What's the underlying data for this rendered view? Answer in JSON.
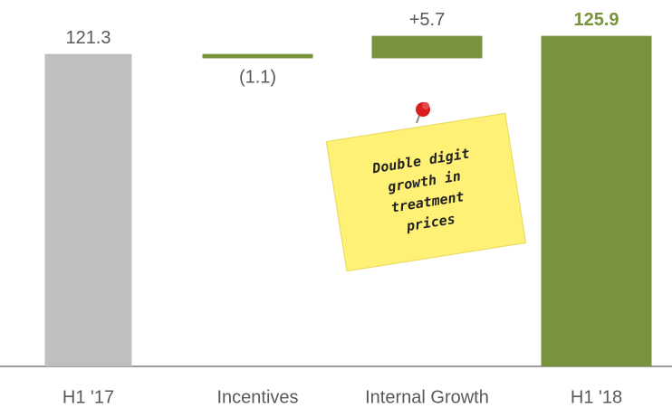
{
  "chart_data": {
    "type": "waterfall",
    "categories": [
      "H1 '17",
      "Incentives",
      "Internal Growth",
      "H1 '18"
    ],
    "measures": [
      "total",
      "relative",
      "relative",
      "total"
    ],
    "values": [
      121.3,
      -1.1,
      5.7,
      125.9
    ],
    "value_labels": [
      "121.3",
      "(1.1)",
      "+5.7",
      "125.9"
    ],
    "colors": [
      "#bfbfbf",
      "#77933c",
      "#77933c",
      "#77933c"
    ],
    "ylim": [
      42,
      135
    ],
    "annotation": [
      "Double digit",
      "growth in",
      "treatment",
      "prices"
    ]
  }
}
